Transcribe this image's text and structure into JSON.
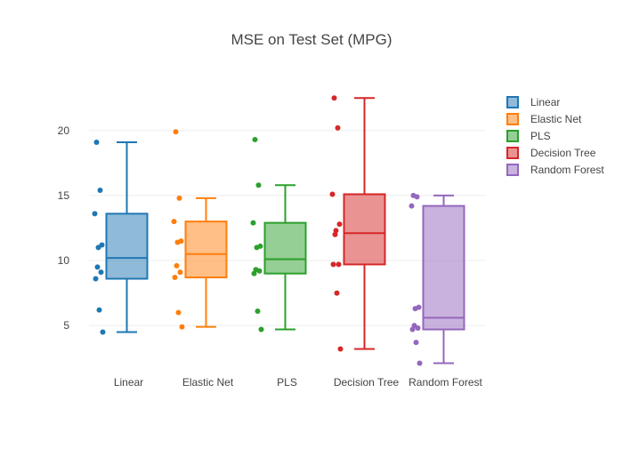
{
  "chart_data": {
    "type": "box",
    "title": "MSE on Test Set (MPG)",
    "xlabel": "",
    "ylabel": "",
    "ylim": [
      2.0,
      23.2
    ],
    "yticks": [
      5,
      10,
      15,
      20
    ],
    "grid": true,
    "legend_position": "right",
    "categories": [
      "Linear",
      "Elastic Net",
      "PLS",
      "Decision Tree",
      "Random Forest"
    ],
    "series": [
      {
        "name": "Linear",
        "color": "#1f77b4",
        "min": 4.5,
        "q1": 8.6,
        "median": 10.2,
        "q3": 13.6,
        "max": 19.1,
        "points": [
          19.1,
          15.4,
          13.6,
          11.2,
          11.0,
          9.5,
          9.1,
          8.6,
          6.2,
          4.5
        ]
      },
      {
        "name": "Elastic Net",
        "color": "#ff7f0e",
        "min": 4.9,
        "q1": 8.7,
        "median": 10.5,
        "q3": 13.0,
        "max": 14.8,
        "points": [
          19.9,
          14.8,
          13.0,
          11.5,
          11.4,
          9.6,
          9.1,
          8.7,
          6.0,
          4.9
        ]
      },
      {
        "name": "PLS",
        "color": "#2ca02c",
        "min": 4.7,
        "q1": 9.0,
        "median": 10.1,
        "q3": 12.9,
        "max": 15.8,
        "points": [
          19.3,
          15.8,
          12.9,
          11.1,
          11.0,
          9.3,
          9.2,
          9.0,
          6.1,
          4.7
        ]
      },
      {
        "name": "Decision Tree",
        "color": "#d62728",
        "min": 3.2,
        "q1": 9.7,
        "median": 12.1,
        "q3": 15.1,
        "max": 22.5,
        "points": [
          22.5,
          20.2,
          15.1,
          12.8,
          12.3,
          12.0,
          9.7,
          9.7,
          7.5,
          3.2
        ]
      },
      {
        "name": "Random Forest",
        "color": "#9467bd",
        "min": 2.1,
        "q1": 4.7,
        "median": 5.6,
        "q3": 14.2,
        "max": 15.0,
        "points": [
          15.0,
          14.9,
          14.2,
          6.4,
          6.3,
          5.0,
          4.8,
          4.7,
          3.7,
          2.1
        ]
      }
    ]
  }
}
